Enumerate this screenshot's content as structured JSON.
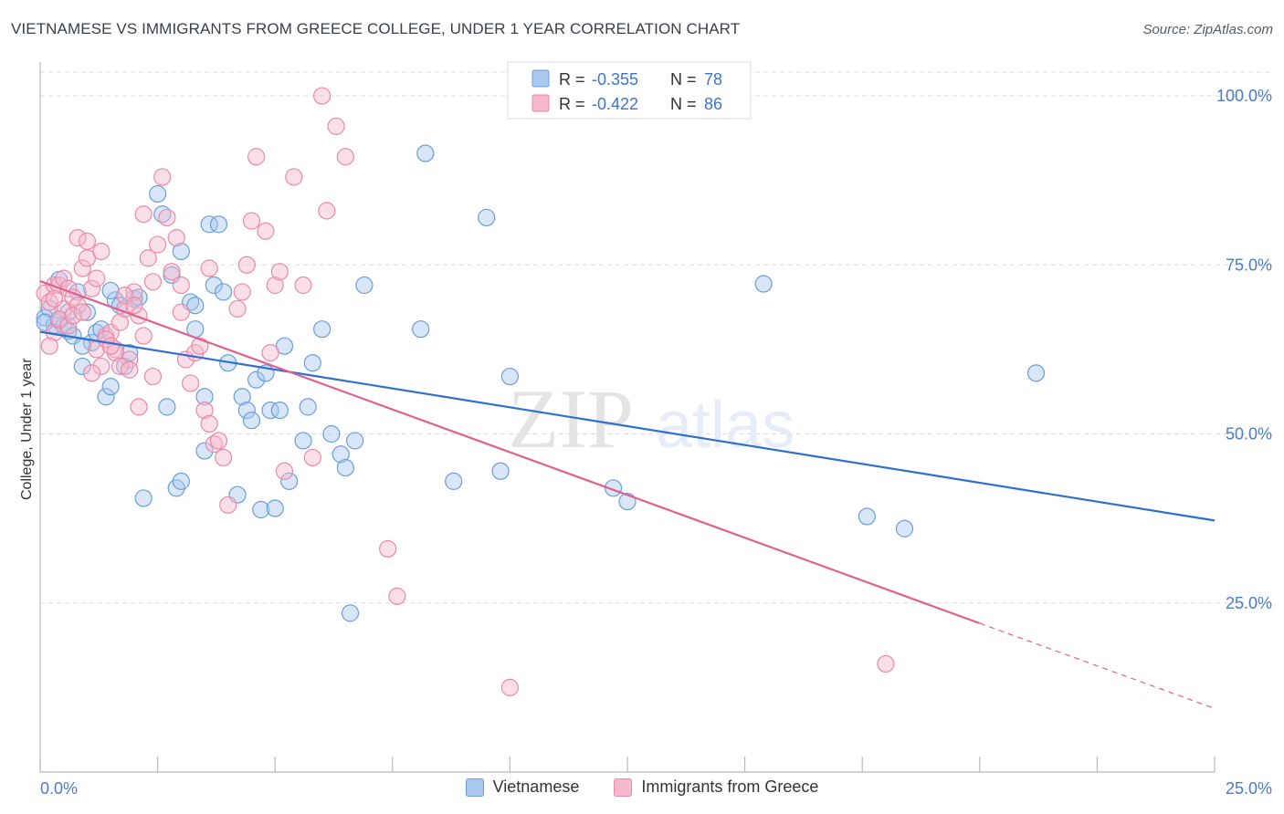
{
  "title": "VIETNAMESE VS IMMIGRANTS FROM GREECE COLLEGE, UNDER 1 YEAR CORRELATION CHART",
  "source": "Source: ZipAtlas.com",
  "watermark": {
    "zip": "ZIP",
    "atlas": "atlas"
  },
  "colors": {
    "vietnamese_fill": "#a8c8f0",
    "vietnamese_stroke": "#6a9fd8",
    "vietnamese_line": "#2f6fcf",
    "greece_fill": "#f6b8cc",
    "greece_stroke": "#e88aa8",
    "greece_line": "#e0608f",
    "tick_color": "#4a7cc7",
    "grid": "#dddddd"
  },
  "legend": {
    "rows": [
      {
        "r_label": "R =",
        "r_value": "-0.355",
        "n_label": "N =",
        "n_value": "78"
      },
      {
        "r_label": "R =",
        "r_value": "-0.422",
        "n_label": "N =",
        "n_value": "86"
      }
    ]
  },
  "chart_data": {
    "type": "scatter",
    "title": "VIETNAMESE VS IMMIGRANTS FROM GREECE COLLEGE, UNDER 1 YEAR CORRELATION CHART",
    "xlabel": "",
    "ylabel": "College, Under 1 year",
    "xlim": [
      0,
      25
    ],
    "ylim": [
      0,
      105
    ],
    "x_tick_labels": [
      "0.0%",
      "25.0%"
    ],
    "y_ticks": [
      25,
      50,
      75,
      100
    ],
    "y_tick_labels": [
      "25.0%",
      "50.0%",
      "75.0%",
      "100.0%"
    ],
    "grid": true,
    "legend_position": "top-center",
    "series": [
      {
        "name": "Vietnamese",
        "r": -0.355,
        "n": 78,
        "trend": {
          "x0": 0,
          "y0": 65.1,
          "x1": 25,
          "y1": 37.2
        },
        "points": [
          [
            0.1,
            67.2
          ],
          [
            0.2,
            68.5
          ],
          [
            0.3,
            66.1
          ],
          [
            0.4,
            72.8
          ],
          [
            0.5,
            66.0
          ],
          [
            0.6,
            65.2
          ],
          [
            0.6,
            68.0
          ],
          [
            0.7,
            64.5
          ],
          [
            0.8,
            71.0
          ],
          [
            0.9,
            60.0
          ],
          [
            1.0,
            68.0
          ],
          [
            1.1,
            63.5
          ],
          [
            1.2,
            65.0
          ],
          [
            1.3,
            65.5
          ],
          [
            1.4,
            55.5
          ],
          [
            1.5,
            57.0
          ],
          [
            1.6,
            69.8
          ],
          [
            1.7,
            69.0
          ],
          [
            1.8,
            60.0
          ],
          [
            1.9,
            62.0
          ],
          [
            2.0,
            70.0
          ],
          [
            2.2,
            40.5
          ],
          [
            2.5,
            85.5
          ],
          [
            2.6,
            82.5
          ],
          [
            2.7,
            54.0
          ],
          [
            2.8,
            73.5
          ],
          [
            2.9,
            42.0
          ],
          [
            3.0,
            43.0
          ],
          [
            3.0,
            77.0
          ],
          [
            3.2,
            69.5
          ],
          [
            3.3,
            69.0
          ],
          [
            3.3,
            65.5
          ],
          [
            3.5,
            55.5
          ],
          [
            3.5,
            47.5
          ],
          [
            3.6,
            81.0
          ],
          [
            3.7,
            72.0
          ],
          [
            3.8,
            81.0
          ],
          [
            3.9,
            71.0
          ],
          [
            4.0,
            60.5
          ],
          [
            4.2,
            41.0
          ],
          [
            4.3,
            55.5
          ],
          [
            4.4,
            53.5
          ],
          [
            4.5,
            52.0
          ],
          [
            4.6,
            58.0
          ],
          [
            4.7,
            38.8
          ],
          [
            4.8,
            59.0
          ],
          [
            4.9,
            53.5
          ],
          [
            5.0,
            39.0
          ],
          [
            5.1,
            53.5
          ],
          [
            5.2,
            63.0
          ],
          [
            5.3,
            43.0
          ],
          [
            5.6,
            49.0
          ],
          [
            5.7,
            54.0
          ],
          [
            5.8,
            60.5
          ],
          [
            6.0,
            65.5
          ],
          [
            6.2,
            50.0
          ],
          [
            6.4,
            47.0
          ],
          [
            6.5,
            45.0
          ],
          [
            6.6,
            23.5
          ],
          [
            6.7,
            49.0
          ],
          [
            6.9,
            72.0
          ],
          [
            8.1,
            65.5
          ],
          [
            8.2,
            91.5
          ],
          [
            8.8,
            43.0
          ],
          [
            9.5,
            82.0
          ],
          [
            9.8,
            44.5
          ],
          [
            10.0,
            58.5
          ],
          [
            12.2,
            42.0
          ],
          [
            12.5,
            40.0
          ],
          [
            15.4,
            72.2
          ],
          [
            17.6,
            37.8
          ],
          [
            18.4,
            36.0
          ],
          [
            21.2,
            59.0
          ],
          [
            0.1,
            66.5
          ],
          [
            0.4,
            66.8
          ],
          [
            0.9,
            63.0
          ],
          [
            1.5,
            71.2
          ],
          [
            2.1,
            70.2
          ]
        ]
      },
      {
        "name": "Immigrants from Greece",
        "r": -0.422,
        "n": 86,
        "trend": {
          "x0": 0,
          "y0": 72.6,
          "x1": 20,
          "y1": 22.0
        },
        "trend_dashed": {
          "x0": 20,
          "y0": 22.0,
          "x1": 25,
          "y1": 9.4
        },
        "points": [
          [
            0.1,
            70.8
          ],
          [
            0.2,
            69.5
          ],
          [
            0.3,
            72.0
          ],
          [
            0.3,
            65.0
          ],
          [
            0.4,
            72.0
          ],
          [
            0.5,
            68.5
          ],
          [
            0.5,
            73.0
          ],
          [
            0.6,
            71.5
          ],
          [
            0.7,
            70.2
          ],
          [
            0.8,
            79.0
          ],
          [
            0.9,
            74.5
          ],
          [
            1.0,
            76.0
          ],
          [
            1.0,
            78.5
          ],
          [
            1.1,
            71.5
          ],
          [
            1.2,
            73.0
          ],
          [
            1.3,
            77.0
          ],
          [
            1.3,
            60.0
          ],
          [
            1.4,
            64.5
          ],
          [
            1.5,
            65.0
          ],
          [
            1.6,
            62.5
          ],
          [
            1.7,
            66.5
          ],
          [
            1.8,
            68.5
          ],
          [
            1.9,
            61.0
          ],
          [
            2.0,
            71.0
          ],
          [
            2.1,
            67.5
          ],
          [
            2.2,
            82.5
          ],
          [
            2.3,
            76.0
          ],
          [
            2.4,
            72.5
          ],
          [
            2.5,
            78.0
          ],
          [
            2.6,
            88.0
          ],
          [
            2.7,
            82.0
          ],
          [
            2.8,
            74.0
          ],
          [
            2.9,
            79.0
          ],
          [
            3.0,
            68.0
          ],
          [
            3.1,
            61.0
          ],
          [
            3.2,
            57.5
          ],
          [
            3.3,
            62.0
          ],
          [
            3.4,
            63.0
          ],
          [
            3.5,
            53.5
          ],
          [
            3.6,
            51.5
          ],
          [
            3.7,
            48.5
          ],
          [
            3.8,
            49.0
          ],
          [
            3.9,
            46.5
          ],
          [
            4.0,
            39.5
          ],
          [
            4.2,
            68.5
          ],
          [
            4.3,
            71.0
          ],
          [
            4.4,
            75.0
          ],
          [
            4.5,
            81.5
          ],
          [
            4.6,
            91.0
          ],
          [
            4.8,
            80.0
          ],
          [
            4.9,
            62.0
          ],
          [
            5.0,
            72.0
          ],
          [
            5.1,
            74.0
          ],
          [
            5.2,
            44.5
          ],
          [
            5.4,
            88.0
          ],
          [
            5.6,
            72.0
          ],
          [
            5.8,
            46.5
          ],
          [
            6.0,
            100.0
          ],
          [
            6.1,
            83.0
          ],
          [
            6.3,
            95.5
          ],
          [
            6.5,
            91.0
          ],
          [
            7.4,
            33.0
          ],
          [
            7.6,
            26.0
          ],
          [
            10.0,
            12.5
          ],
          [
            18.0,
            16.0
          ],
          [
            0.2,
            63.0
          ],
          [
            0.4,
            67.0
          ],
          [
            0.6,
            66.0
          ],
          [
            0.8,
            69.0
          ],
          [
            1.1,
            59.0
          ],
          [
            1.2,
            62.5
          ],
          [
            1.4,
            64.0
          ],
          [
            1.6,
            62.0
          ],
          [
            1.8,
            70.5
          ],
          [
            2.0,
            69.0
          ],
          [
            2.2,
            64.5
          ],
          [
            2.4,
            58.5
          ],
          [
            0.3,
            70.0
          ],
          [
            0.7,
            67.5
          ],
          [
            0.9,
            68.0
          ],
          [
            1.5,
            63.0
          ],
          [
            1.7,
            60.0
          ],
          [
            1.9,
            59.5
          ],
          [
            2.1,
            54.0
          ],
          [
            3.0,
            72.0
          ],
          [
            3.6,
            74.5
          ]
        ]
      }
    ]
  },
  "bottom_legend": {
    "items": [
      {
        "label": "Vietnamese"
      },
      {
        "label": "Immigrants from Greece"
      }
    ]
  }
}
